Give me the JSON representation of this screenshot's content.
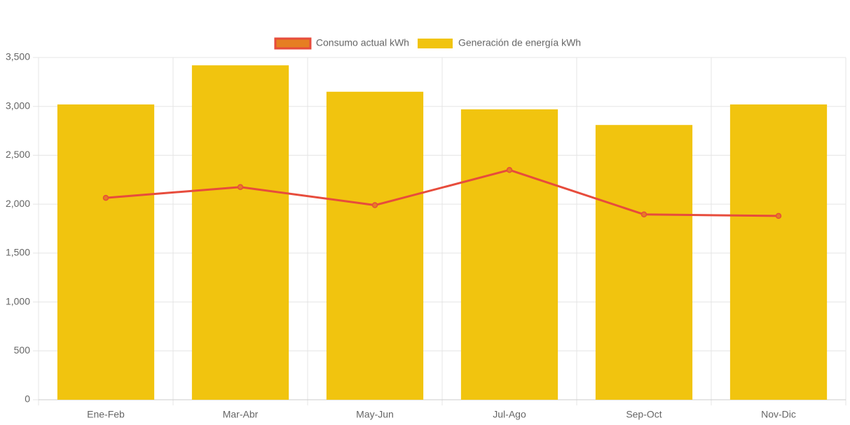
{
  "chart_data": {
    "type": "bar",
    "categories": [
      "Ene-Feb",
      "Mar-Abr",
      "May-Jun",
      "Jul-Ago",
      "Sep-Oct",
      "Nov-Dic"
    ],
    "series": [
      {
        "name": "Consumo actual kWh",
        "type": "line",
        "color": "#e74c3c",
        "point_color": "#e67e22",
        "values": [
          2065,
          2175,
          1990,
          2350,
          1895,
          1880
        ]
      },
      {
        "name": "Generación de energía kWh",
        "type": "bar",
        "color": "#f1c40f",
        "values": [
          3020,
          3420,
          3150,
          2970,
          2810,
          3020
        ]
      }
    ],
    "ylim": [
      0,
      3500
    ],
    "yticks": [
      0,
      500,
      {
        "value": 1000,
        "label": "1,000"
      },
      {
        "value": 1500,
        "label": "1,500"
      },
      {
        "value": 2000,
        "label": "2,000"
      },
      {
        "value": 2500,
        "label": "2,500"
      },
      {
        "value": 3000,
        "label": "3,000"
      },
      {
        "value": 3500,
        "label": "3,500"
      }
    ],
    "grid": true,
    "legend": "top"
  }
}
